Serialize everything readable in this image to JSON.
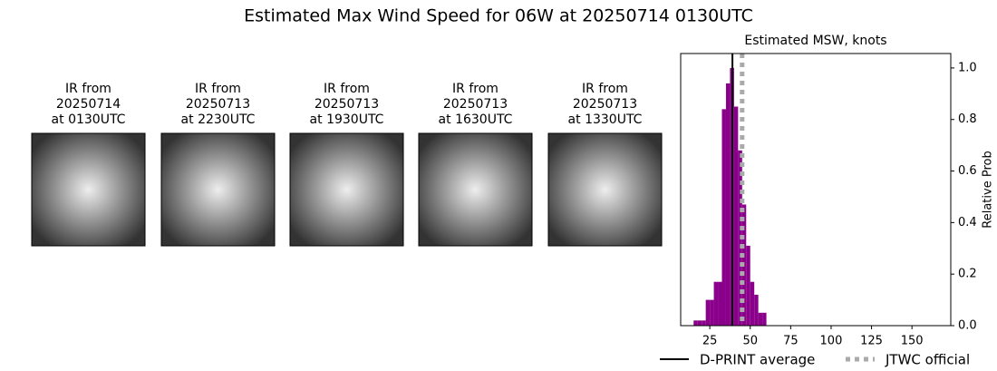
{
  "title": "Estimated Max Wind Speed for 06W at 20250714 0130UTC",
  "panels": [
    {
      "lines": [
        "IR from",
        "20250714",
        "at 0130UTC"
      ]
    },
    {
      "lines": [
        "IR from",
        "20250713",
        "at 2230UTC"
      ]
    },
    {
      "lines": [
        "IR from",
        "20250713",
        "at 1930UTC"
      ]
    },
    {
      "lines": [
        "IR from",
        "20250713",
        "at 1630UTC"
      ]
    },
    {
      "lines": [
        "IR from",
        "20250713",
        "at 1330UTC"
      ]
    }
  ],
  "chart_data": {
    "type": "histogram",
    "title": "Estimated MSW, knots",
    "y_label": "Relative Prob",
    "bins": [
      15,
      17.5,
      20,
      22.5,
      25,
      27.5,
      30,
      32.5,
      35,
      37.5,
      40,
      42.5,
      45,
      47.5,
      50,
      52.5,
      55,
      57.5,
      60
    ],
    "values": [
      0.02,
      0.02,
      0.02,
      0.1,
      0.1,
      0.17,
      0.17,
      0.84,
      0.94,
      1.0,
      0.85,
      0.68,
      0.47,
      0.31,
      0.17,
      0.12,
      0.05,
      0.05
    ],
    "color": "#8b008b",
    "xlim": [
      7,
      174
    ],
    "xticks": [
      25,
      50,
      75,
      100,
      125,
      150
    ],
    "ylim": [
      0,
      1.056
    ],
    "yticks": [
      {
        "value": 0,
        "label": "0.0"
      },
      0.2,
      0.4,
      0.6,
      0.8,
      {
        "value": 1,
        "label": "1.0"
      }
    ],
    "lines": [
      {
        "name": "D-PRINT average",
        "value": 39,
        "color": "#000000",
        "style": "solid"
      },
      {
        "name": "JTWC official",
        "value": 45,
        "color": "#aaaaaa",
        "style": "dotted"
      }
    ]
  }
}
